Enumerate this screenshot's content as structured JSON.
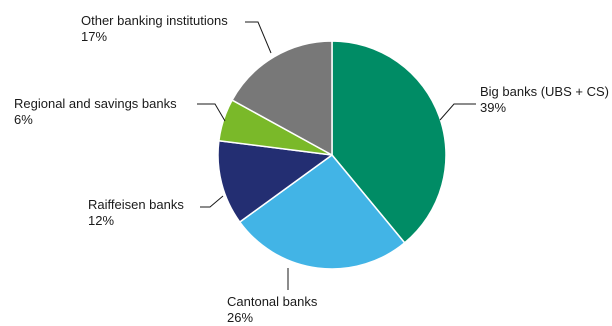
{
  "chart_data": {
    "type": "pie",
    "title": "",
    "slices": [
      {
        "label": "Big banks (UBS + CS)",
        "value": 39,
        "value_label": "39%",
        "color": "#008c65"
      },
      {
        "label": "Cantonal banks",
        "value": 26,
        "value_label": "26%",
        "color": "#42b4e6"
      },
      {
        "label": "Raiffeisen banks",
        "value": 12,
        "value_label": "12%",
        "color": "#232e72"
      },
      {
        "label": "Regional and savings banks",
        "value": 6,
        "value_label": "6%",
        "color": "#7ab929"
      },
      {
        "label": "Other banking institutions",
        "value": 17,
        "value_label": "17%",
        "color": "#787878"
      }
    ],
    "start_angle_deg": 0,
    "direction": "clockwise"
  }
}
